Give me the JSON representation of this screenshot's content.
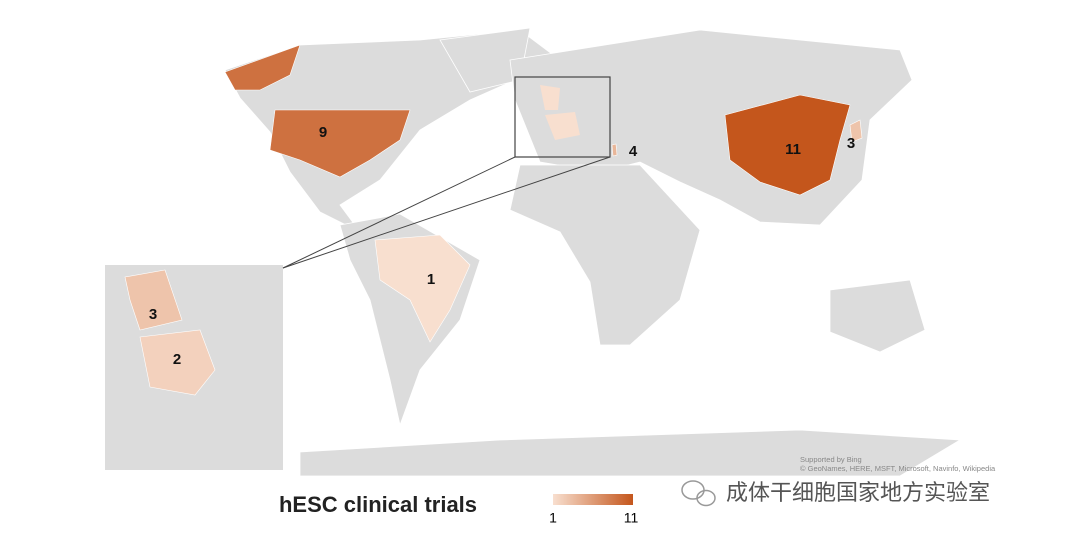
{
  "title": "hESC clinical trials",
  "legend": {
    "min": 1,
    "max": 11,
    "colors": [
      "#f8dfcf",
      "#c4561c"
    ]
  },
  "regions": [
    {
      "value": 9
    },
    {
      "value": 11
    },
    {
      "value": 3
    },
    {
      "value": 4
    },
    {
      "value": 1
    }
  ],
  "inset": {
    "regions": [
      {
        "value": 3
      },
      {
        "value": 2
      }
    ]
  },
  "attribution": [
    "Supported by Bing",
    "© GeoNames, HERE, MSFT, Microsoft, Navinfo, Wikipedia"
  ],
  "watermark": "成体干细胞国家地方实验室"
}
